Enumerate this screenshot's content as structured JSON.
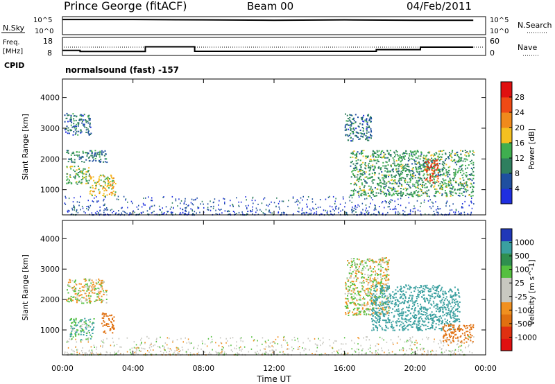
{
  "header": {
    "station": "Prince George (fitACF)",
    "beam": "Beam 00",
    "date": "04/Feb/2011"
  },
  "left_labels": {
    "nsky": "N.Sky",
    "freq": "Freq.",
    "freq_unit": "[MHz]",
    "cpid": "CPID"
  },
  "right_labels": {
    "nsearch": "N.Search",
    "nave": "Nave"
  },
  "program_label": "normalsound (fast) -157",
  "time_axis": {
    "label": "Time UT",
    "ticks": [
      "00:00",
      "04:00",
      "08:00",
      "12:00",
      "16:00",
      "20:00",
      "00:00"
    ]
  },
  "range_axis": {
    "label": "Slant Range [km]",
    "ticks": [
      "1000",
      "2000",
      "3000",
      "4000"
    ]
  },
  "noise_axis": {
    "left": [
      "10^5",
      "10^0"
    ],
    "right": [
      "10^5",
      "10^0"
    ]
  },
  "freq_axis": {
    "left": [
      "18",
      "8"
    ],
    "right": [
      "60",
      "0"
    ]
  },
  "power_scale": {
    "label": "Power [dB]",
    "ticks": [
      "4",
      "8",
      "12",
      "16",
      "20",
      "24",
      "28"
    ],
    "colors": [
      "#1f2fe0",
      "#1f4fa0",
      "#2f7f5f",
      "#3fae4f",
      "#f4c020",
      "#f08a1c",
      "#ef4a15",
      "#e01010"
    ]
  },
  "velocity_scale": {
    "label": "Velocity [m s^-1]",
    "ticks": [
      "1000",
      "500",
      "100",
      "25",
      "-25",
      "-100",
      "-500",
      "-1000"
    ],
    "colors": [
      "#2038b8",
      "#3aa0a0",
      "#2f8f4f",
      "#55c040",
      "#c8c8c0",
      "#c8c8c0",
      "#f09020",
      "#e07010",
      "#e03010",
      "#e01010"
    ]
  },
  "chart_data": [
    {
      "type": "line",
      "name_hint": "noise",
      "x": [
        0,
        4,
        8,
        12,
        16,
        20,
        23.3
      ],
      "series": [
        {
          "values": [
            4.2,
            4.2,
            4.1,
            4.0,
            4.1,
            4.0,
            4.0
          ]
        }
      ],
      "ylabel": "N.Sky"
    },
    {
      "type": "line",
      "name_hint": "frequency",
      "x": [
        0,
        1.0,
        1.0,
        4.7,
        4.7,
        7.5,
        7.5,
        17.8,
        17.8,
        20.3,
        20.3,
        23.3
      ],
      "series": [
        {
          "values": [
            10.8,
            10.8,
            10.2,
            10.2,
            12.8,
            12.8,
            10.3,
            10.3,
            11.2,
            11.2,
            12.6,
            12.6
          ]
        }
      ],
      "ylabel": "Freq. [MHz]",
      "ylim": [
        8,
        18
      ]
    },
    {
      "type": "heatmap",
      "name_hint": "power",
      "xlabel": "Time UT",
      "ylabel": "Slant Range [km]",
      "xlim": [
        0,
        24
      ],
      "ylim": [
        180,
        4600
      ],
      "colorbar_label": "Power [dB]",
      "regions": [
        {
          "t0": 0.1,
          "t1": 1.6,
          "r0": 2800,
          "r1": 3500,
          "val": 8
        },
        {
          "t0": 0.2,
          "t1": 2.5,
          "r0": 1900,
          "r1": 2300,
          "val": 10
        },
        {
          "t0": 0.2,
          "t1": 1.5,
          "r0": 1200,
          "r1": 1800,
          "val": 14
        },
        {
          "t0": 1.5,
          "t1": 3.0,
          "r0": 800,
          "r1": 1500,
          "val": 18
        },
        {
          "t0": 16.0,
          "t1": 17.5,
          "r0": 2600,
          "r1": 3500,
          "val": 8
        },
        {
          "t0": 16.3,
          "t1": 23.3,
          "r0": 800,
          "r1": 2300,
          "val": 12
        },
        {
          "t0": 20.5,
          "t1": 21.3,
          "r0": 1200,
          "r1": 2000,
          "val": 26
        }
      ]
    },
    {
      "type": "heatmap",
      "name_hint": "velocity",
      "xlabel": "Time UT",
      "ylabel": "Slant Range [km]",
      "xlim": [
        0,
        24
      ],
      "ylim": [
        180,
        4600
      ],
      "colorbar_label": "Velocity [m s^-1]",
      "regions": [
        {
          "t0": 0.2,
          "t1": 2.5,
          "r0": 1900,
          "r1": 2700,
          "val": 0
        },
        {
          "t0": 0.4,
          "t1": 1.8,
          "r0": 700,
          "r1": 1400,
          "val": 100
        },
        {
          "t0": 2.2,
          "t1": 2.9,
          "r0": 900,
          "r1": 1600,
          "val": -200
        },
        {
          "t0": 16.0,
          "t1": 18.5,
          "r0": 1500,
          "r1": 3400,
          "val": 0
        },
        {
          "t0": 17.5,
          "t1": 22.5,
          "r0": 1000,
          "r1": 2500,
          "val": 200
        },
        {
          "t0": 21.5,
          "t1": 23.3,
          "r0": 600,
          "r1": 1200,
          "val": -300
        }
      ]
    }
  ]
}
